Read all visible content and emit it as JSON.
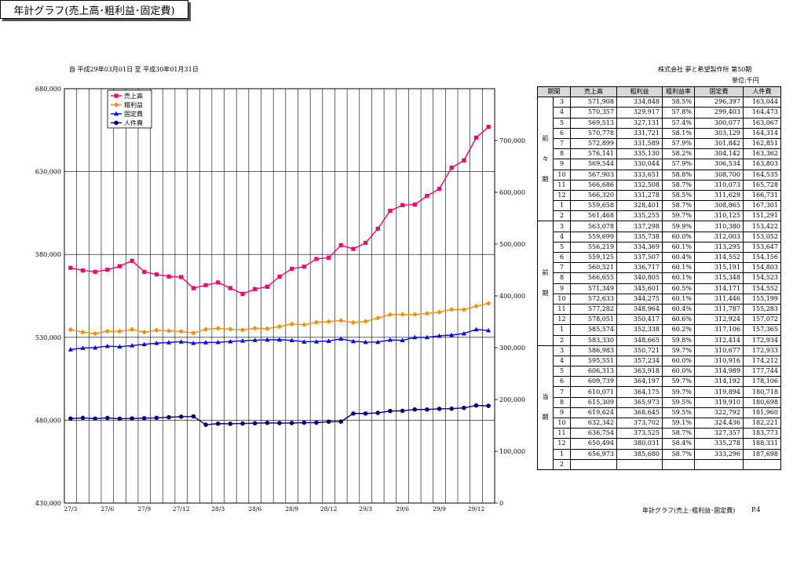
{
  "header": {
    "title": "年計グラフ(売上高･粗利益･固定費)",
    "period": "自 平成29年03月01日 至 平成30年01月31日",
    "company": "株式会社 夢と希望製作所 第50期",
    "unit": "単位:千円"
  },
  "footer": {
    "label": "年計グラフ(売上･粗利益･固定費)",
    "page": "P.4"
  },
  "chart_data": {
    "type": "line",
    "x": [
      "27/3",
      "27/4",
      "27/5",
      "27/6",
      "27/7",
      "27/8",
      "27/9",
      "27/10",
      "27/11",
      "27/12",
      "28/1",
      "28/2",
      "28/3",
      "28/4",
      "28/5",
      "28/6",
      "28/7",
      "28/8",
      "28/9",
      "28/10",
      "28/11",
      "28/12",
      "29/1",
      "29/2",
      "29/3",
      "29/4",
      "29/5",
      "29/6",
      "29/7",
      "29/8",
      "29/9",
      "29/10",
      "29/11",
      "29/12",
      "30/1"
    ],
    "x_tick_labels": [
      "27/3",
      "27/6",
      "27/9",
      "27/12",
      "28/3",
      "28/6",
      "28/9",
      "28/12",
      "29/3",
      "29/6",
      "29/9",
      "29/12"
    ],
    "left_axis": {
      "ylim": [
        430000,
        680000
      ],
      "ticks": [
        "680,000",
        "630,000",
        "580,000",
        "530,000",
        "480,000",
        "430,000"
      ]
    },
    "right_axis": {
      "ylim": [
        0,
        800000
      ],
      "ticks": [
        "700,000",
        "600,000",
        "500,000",
        "400,000",
        "300,000",
        "200,000",
        "100,000",
        "0"
      ]
    },
    "legend": {
      "placement": "top-left"
    },
    "series": [
      {
        "name": "売上高",
        "axis": "left",
        "color": "#ff0066",
        "marker": "square",
        "values": [
          571908,
          570357,
          569513,
          570778,
          572899,
          576141,
          569544,
          567903,
          566686,
          566320,
          559658,
          561468,
          563078,
          559699,
          556219,
          559125,
          560521,
          566655,
          571349,
          572633,
          577282,
          578051,
          585574,
          583330,
          586983,
          595551,
          606313,
          609739,
          610071,
          615309,
          619624,
          632342,
          636754,
          650494,
          656973
        ]
      },
      {
        "name": "粗利益",
        "axis": "right",
        "color": "#ff8c00",
        "marker": "diamond",
        "values": [
          334848,
          329917,
          327131,
          331721,
          331589,
          335130,
          330044,
          333651,
          332508,
          331278,
          328401,
          335255,
          337298,
          335738,
          334369,
          337507,
          336717,
          340805,
          345601,
          344275,
          348964,
          350417,
          352338,
          348665,
          350721,
          357234,
          363918,
          364197,
          364175,
          365973,
          368645,
          373702,
          373525,
          380031,
          385680
        ]
      },
      {
        "name": "固定費",
        "axis": "right",
        "color": "#0000ff",
        "marker": "triangle",
        "values": [
          296397,
          299403,
          300077,
          303129,
          301842,
          304142,
          306534,
          308700,
          310073,
          311629,
          308865,
          310125,
          310380,
          312003,
          313295,
          314552,
          315191,
          315348,
          314171,
          311446,
          311787,
          312924,
          317106,
          312414,
          310677,
          310916,
          314989,
          314192,
          319894,
          319910,
          322792,
          324436,
          327357,
          335278,
          333296
        ]
      },
      {
        "name": "人件費",
        "axis": "right",
        "color": "#000080",
        "marker": "circle",
        "values": [
          163044,
          164473,
          163067,
          164314,
          162851,
          163362,
          163803,
          164535,
          165728,
          166731,
          167301,
          151291,
          153422,
          153052,
          153647,
          154156,
          154803,
          154523,
          154552,
          155199,
          155283,
          157072,
          157365,
          172934,
          172933,
          174212,
          177744,
          178106,
          180718,
          180698,
          181960,
          182221,
          183773,
          188331,
          187698
        ]
      }
    ]
  },
  "table": {
    "headers": [
      "期間",
      "売上高",
      "粗利益",
      "粗利益率",
      "固定費",
      "人件費"
    ],
    "groups": [
      {
        "label_chars": [
          "前",
          "々",
          "期"
        ],
        "rows": [
          [
            "3",
            "571,908",
            "334,848",
            "58.5%",
            "296,397",
            "163,044"
          ],
          [
            "4",
            "570,357",
            "329,917",
            "57.8%",
            "299,403",
            "164,473"
          ],
          [
            "5",
            "569,513",
            "327,131",
            "57.4%",
            "300,077",
            "163,067"
          ],
          [
            "6",
            "570,778",
            "331,721",
            "58.1%",
            "303,129",
            "164,314"
          ],
          [
            "7",
            "572,899",
            "331,589",
            "57.9%",
            "301,842",
            "162,851"
          ],
          [
            "8",
            "576,141",
            "335,130",
            "58.2%",
            "304,142",
            "163,362"
          ],
          [
            "9",
            "569,544",
            "330,044",
            "57.9%",
            "306,534",
            "163,803"
          ],
          [
            "10",
            "567,903",
            "333,651",
            "58.8%",
            "308,700",
            "164,535"
          ],
          [
            "11",
            "566,686",
            "332,508",
            "58.7%",
            "310,073",
            "165,728"
          ],
          [
            "12",
            "566,320",
            "331,278",
            "58.5%",
            "311,629",
            "166,731"
          ],
          [
            "1",
            "559,658",
            "328,401",
            "58.7%",
            "308,865",
            "167,301"
          ],
          [
            "2",
            "561,468",
            "335,255",
            "59.7%",
            "310,125",
            "151,291"
          ]
        ]
      },
      {
        "label_chars": [
          "前",
          "期"
        ],
        "rows": [
          [
            "3",
            "563,078",
            "337,298",
            "59.9%",
            "310,380",
            "153,422"
          ],
          [
            "4",
            "559,699",
            "335,738",
            "60.0%",
            "312,003",
            "153,052"
          ],
          [
            "5",
            "556,219",
            "334,369",
            "60.1%",
            "313,295",
            "153,647"
          ],
          [
            "6",
            "559,125",
            "337,507",
            "60.4%",
            "314,552",
            "154,156"
          ],
          [
            "7",
            "560,521",
            "336,717",
            "60.1%",
            "315,191",
            "154,803"
          ],
          [
            "8",
            "566,655",
            "340,805",
            "60.1%",
            "315,348",
            "154,523"
          ],
          [
            "9",
            "571,349",
            "345,601",
            "60.5%",
            "314,171",
            "154,552"
          ],
          [
            "10",
            "572,633",
            "344,275",
            "60.1%",
            "311,446",
            "155,199"
          ],
          [
            "11",
            "577,282",
            "348,964",
            "60.4%",
            "311,787",
            "155,283"
          ],
          [
            "12",
            "578,051",
            "350,417",
            "60.6%",
            "312,924",
            "157,072"
          ],
          [
            "1",
            "585,574",
            "352,338",
            "60.2%",
            "317,106",
            "157,365"
          ],
          [
            "2",
            "583,330",
            "348,665",
            "59.8%",
            "312,414",
            "172,934"
          ]
        ]
      },
      {
        "label_chars": [
          "当",
          "期"
        ],
        "rows": [
          [
            "3",
            "586,983",
            "350,721",
            "59.7%",
            "310,677",
            "172,933"
          ],
          [
            "4",
            "595,551",
            "357,234",
            "60.0%",
            "310,916",
            "174,212"
          ],
          [
            "5",
            "606,313",
            "363,918",
            "60.0%",
            "314,989",
            "177,744"
          ],
          [
            "6",
            "609,739",
            "364,197",
            "59.7%",
            "314,192",
            "178,106"
          ],
          [
            "7",
            "610,071",
            "364,175",
            "59.7%",
            "319,894",
            "180,718"
          ],
          [
            "8",
            "615,309",
            "365,973",
            "59.5%",
            "319,910",
            "180,698"
          ],
          [
            "9",
            "619,624",
            "368,645",
            "59.5%",
            "322,792",
            "181,960"
          ],
          [
            "10",
            "632,342",
            "373,702",
            "59.1%",
            "324,436",
            "182,221"
          ],
          [
            "11",
            "636,754",
            "373,525",
            "58.7%",
            "327,357",
            "183,773"
          ],
          [
            "12",
            "650,494",
            "380,031",
            "58.4%",
            "335,278",
            "188,331"
          ],
          [
            "1",
            "656,973",
            "385,680",
            "58.7%",
            "333,296",
            "187,698"
          ],
          [
            "2",
            "",
            "",
            "",
            "",
            ""
          ]
        ]
      }
    ]
  }
}
